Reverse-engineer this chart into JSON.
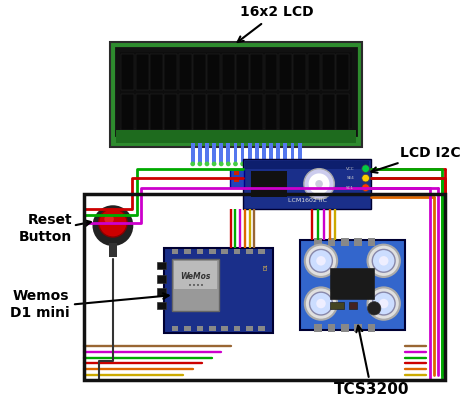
{
  "bg_color": "#ffffff",
  "lcd_label": "16x2 LCD",
  "lcd_i2c_label": "LCD I2C",
  "reset_label": "Reset\nButton",
  "wemos_label": "Wemos\nD1 mini",
  "tcs_label": "TCS3200",
  "lcm_text": "LCM1602 IIC",
  "wemos_text": "WeMos",
  "lcd_green": "#2e8b2e",
  "lcd_black": "#0d0d0d",
  "i2c_board_blue": "#1a2f8a",
  "wemos_board_blue": "#1a2f8a",
  "tcs_board_blue": "#2255bb",
  "reset_btn_red": "#cc0000",
  "outer_box": "#111111",
  "wire_colors": [
    "#cc0000",
    "#00aa00",
    "#cc00cc",
    "#dd6600",
    "#ccaa00",
    "#996633",
    "#888888"
  ],
  "wire_lw": 2.0,
  "label_fontsize": 10
}
